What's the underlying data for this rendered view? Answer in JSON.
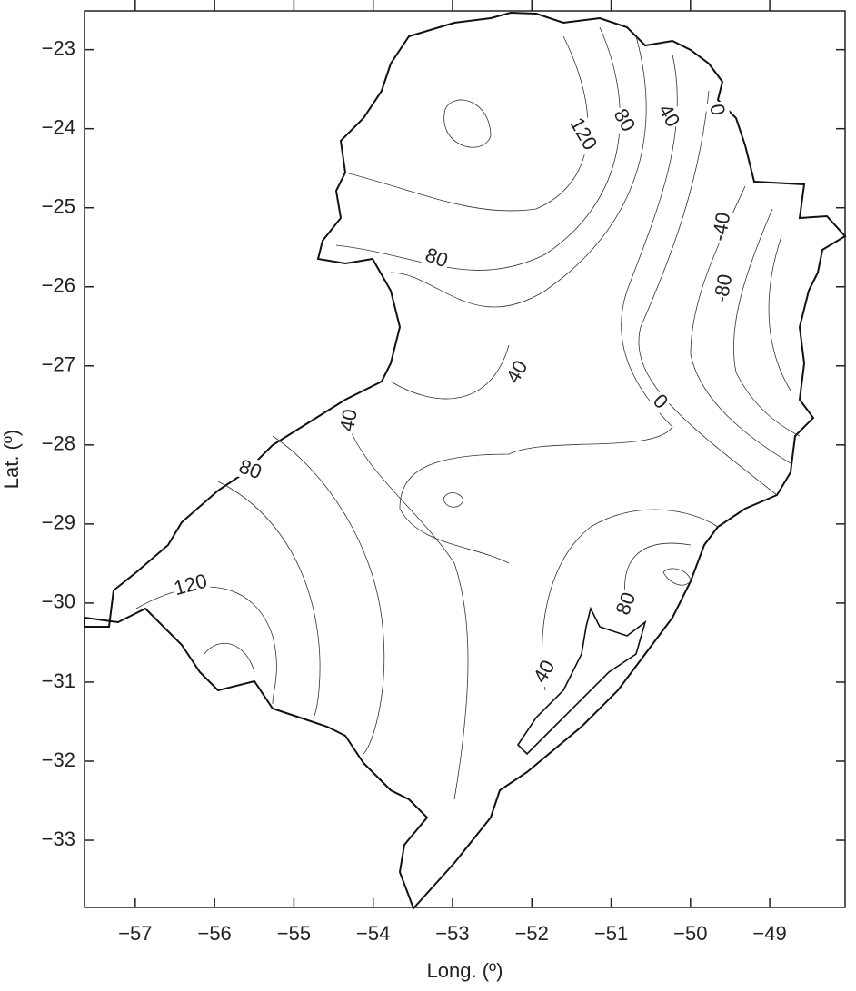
{
  "chart_data": {
    "type": "contour-map",
    "x_label": "Long. (º)",
    "y_label": "Lat. (º)",
    "xlim": [
      -57.64,
      -48.05
    ],
    "ylim": [
      -33.85,
      -22.51
    ],
    "xticks": [
      {
        "value": -57,
        "label": "−57"
      },
      {
        "value": -56,
        "label": "−56"
      },
      {
        "value": -55,
        "label": "−55"
      },
      {
        "value": -54,
        "label": "−54"
      },
      {
        "value": -53,
        "label": "−53"
      },
      {
        "value": -52,
        "label": "−52"
      },
      {
        "value": -51,
        "label": "−51"
      },
      {
        "value": -50,
        "label": "−50"
      },
      {
        "value": -49,
        "label": "−49"
      }
    ],
    "yticks": [
      {
        "value": -23,
        "label": "−23"
      },
      {
        "value": -24,
        "label": "−24"
      },
      {
        "value": -25,
        "label": "−25"
      },
      {
        "value": -26,
        "label": "−26"
      },
      {
        "value": -27,
        "label": "−27"
      },
      {
        "value": -28,
        "label": "−28"
      },
      {
        "value": -29,
        "label": "−29"
      },
      {
        "value": -30,
        "label": "−30"
      },
      {
        "value": -31,
        "label": "−31"
      },
      {
        "value": -32,
        "label": "−32"
      },
      {
        "value": -33,
        "label": "−33"
      }
    ],
    "contour_labels": [
      "120",
      "80",
      "40",
      "0",
      "-40",
      "-80",
      "80",
      "40",
      "0",
      "40",
      "80",
      "120",
      "40",
      "80"
    ]
  }
}
